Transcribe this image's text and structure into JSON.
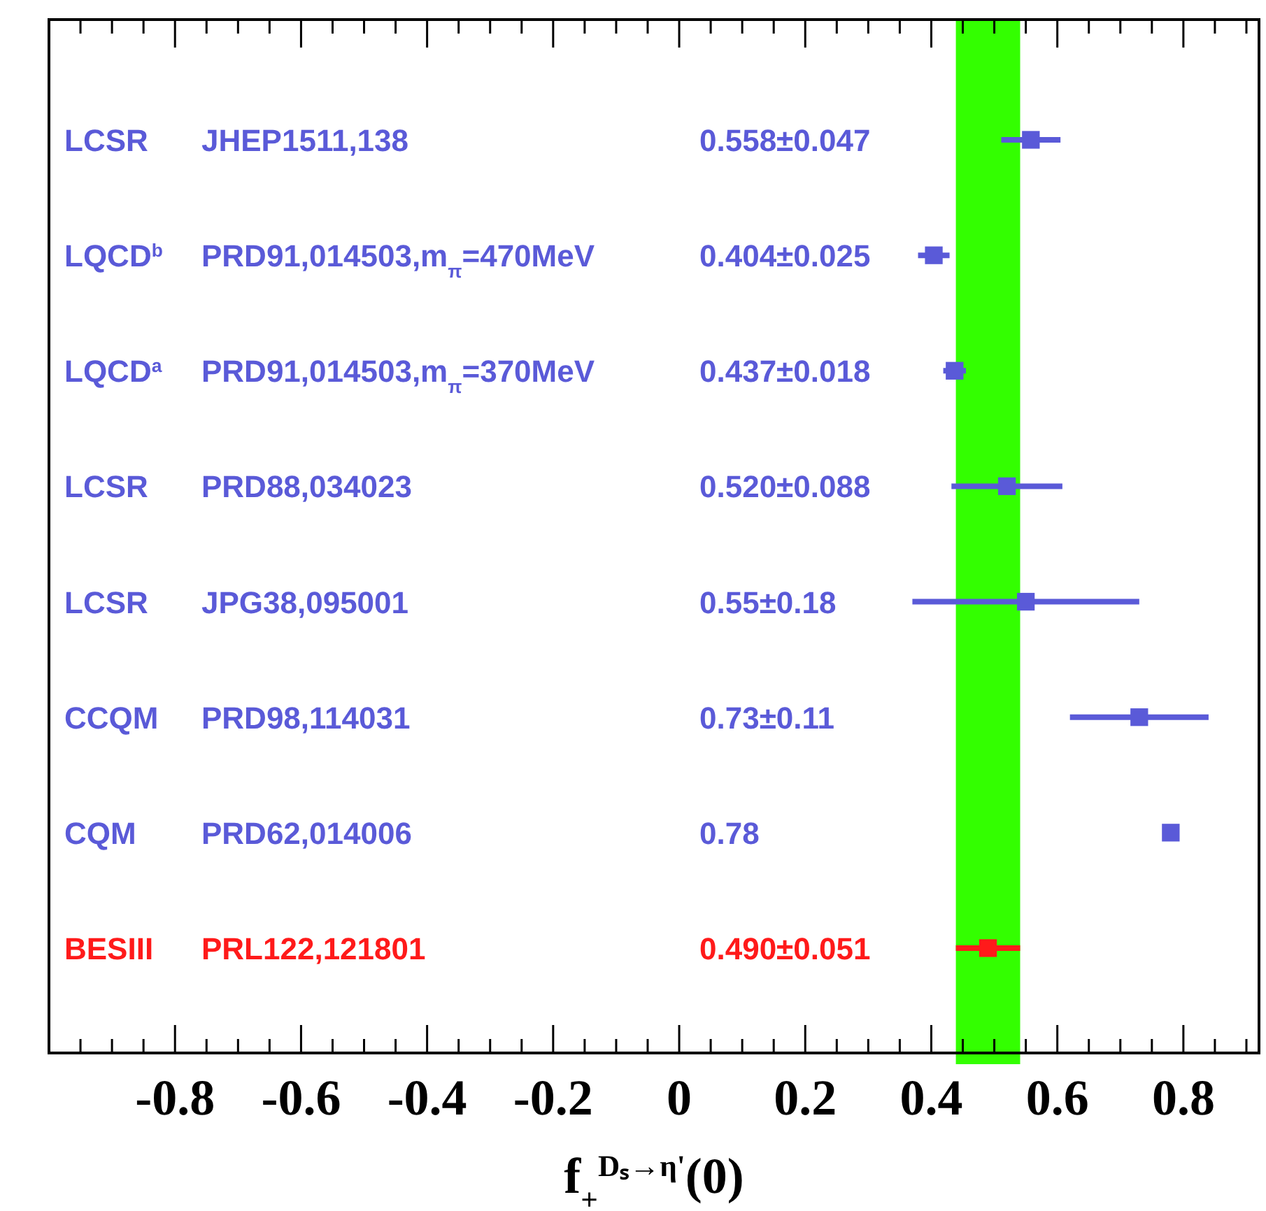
{
  "chart_data": {
    "type": "scatter",
    "orientation": "horizontal",
    "marker": "square",
    "categories": [
      "LCSR",
      "LQCD$^{b}$",
      "LQCD$^{a}$",
      "LCSR",
      "LCSR",
      "CCQM",
      "CQM",
      "BESIII"
    ],
    "annotations": [
      "JHEP1511,138",
      "PRD91,014503,m$_{π}$=470MeV",
      "PRD91,014503,m$_{π}$=370MeV",
      "PRD88,034023",
      "JPG38,095001",
      "PRD98,114031",
      "PRD62,014006",
      "PRL122,121801",
      "0.558±0.047",
      "0.404±0.025",
      "0.437±0.018",
      "0.520±0.088",
      "0.55±0.18",
      "0.73±0.11",
      "0.78",
      "0.490±0.051"
    ],
    "series": [
      {
        "values": [
          0.558,
          0.404,
          0.437,
          0.52,
          0.55,
          0.73,
          0.78,
          0.49
        ],
        "errors": [
          0.047,
          0.025,
          0.018,
          0.088,
          0.18,
          0.11,
          null,
          0.051
        ],
        "colors": [
          "#5a5ad8",
          "#5a5ad8",
          "#5a5ad8",
          "#5a5ad8",
          "#5a5ad8",
          "#5a5ad8",
          "#5a5ad8",
          "#ff1a1a"
        ]
      }
    ],
    "xlim": [
      -1.0,
      0.92
    ],
    "xticks": [
      {
        "value": -0.95,
        "label": null
      },
      {
        "value": -0.9,
        "label": null
      },
      {
        "value": -0.85,
        "label": null
      },
      -0.8,
      {
        "value": -0.75,
        "label": null
      },
      {
        "value": -0.7,
        "label": null
      },
      {
        "value": -0.65,
        "label": null
      },
      -0.6,
      {
        "value": -0.55,
        "label": null
      },
      {
        "value": -0.5,
        "label": null
      },
      {
        "value": -0.45,
        "label": null
      },
      -0.4,
      {
        "value": -0.35,
        "label": null
      },
      {
        "value": -0.3,
        "label": null
      },
      {
        "value": -0.25,
        "label": null
      },
      -0.2,
      {
        "value": -0.15,
        "label": null
      },
      {
        "value": -0.1,
        "label": null
      },
      {
        "value": -0.05,
        "label": null
      },
      0,
      {
        "value": 0.05,
        "label": null
      },
      {
        "value": 0.1,
        "label": null
      },
      {
        "value": 0.15,
        "label": null
      },
      0.2,
      {
        "value": 0.25,
        "label": null
      },
      {
        "value": 0.3,
        "label": null
      },
      {
        "value": 0.35,
        "label": null
      },
      0.4,
      {
        "value": 0.45,
        "label": null
      },
      {
        "value": 0.5,
        "label": null
      },
      {
        "value": 0.55,
        "label": null
      },
      0.6,
      {
        "value": 0.65,
        "label": null
      },
      {
        "value": 0.7,
        "label": null
      },
      {
        "value": 0.75,
        "label": null
      },
      0.8,
      {
        "value": 0.85,
        "label": null
      },
      {
        "value": 0.9,
        "label": null
      }
    ],
    "bands": [
      {
        "axis": "x",
        "from": 0.439,
        "to": 0.541,
        "color": "#33ff00"
      }
    ],
    "xlabel": "f$_{+}$$^{Dₛ→η'}$(0)",
    "grid": false
  }
}
